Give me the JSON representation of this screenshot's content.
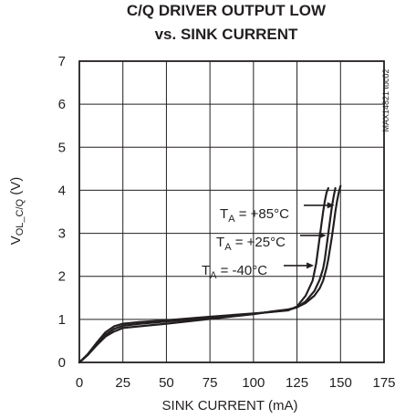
{
  "chart_data": {
    "type": "line",
    "title": [
      "C/Q DRIVER OUTPUT LOW",
      "vs. SINK CURRENT"
    ],
    "xlabel": "SINK CURRENT (mA)",
    "ylabel": {
      "main": "V",
      "sub": "OL_C/Q",
      "unit": " (V)"
    },
    "xlim": [
      0,
      175
    ],
    "ylim": [
      0,
      7
    ],
    "xticks": [
      "0",
      "25",
      "50",
      "75",
      "100",
      "125",
      "150",
      "175"
    ],
    "yticks": [
      "0",
      "1",
      "2",
      "3",
      "4",
      "5",
      "6",
      "7"
    ],
    "grid": true,
    "figure_code": "MAX14821 toc02",
    "series": [
      {
        "annotation": {
          "main": "T",
          "sub": "A",
          "rest": " = +85°C"
        },
        "x": [
          0,
          5,
          10,
          15,
          20,
          25,
          35,
          50,
          75,
          100,
          110,
          120,
          125,
          130,
          135,
          138,
          140,
          141,
          142,
          143,
          144,
          145,
          146,
          147,
          148,
          149,
          150
        ],
        "y": [
          0,
          0.18,
          0.4,
          0.6,
          0.72,
          0.8,
          0.84,
          0.9,
          1.01,
          1.12,
          1.18,
          1.23,
          1.28,
          1.38,
          1.55,
          1.72,
          1.9,
          2.05,
          2.2,
          2.4,
          2.65,
          2.9,
          3.2,
          3.5,
          3.75,
          3.95,
          4.1
        ]
      },
      {
        "annotation": {
          "main": "T",
          "sub": "A",
          "rest": " = +25°C"
        },
        "x": [
          0,
          5,
          10,
          15,
          20,
          25,
          35,
          50,
          75,
          100,
          110,
          120,
          125,
          130,
          135,
          138,
          140,
          141,
          142,
          143,
          144,
          145,
          146,
          147
        ],
        "y": [
          0,
          0.18,
          0.42,
          0.64,
          0.78,
          0.85,
          0.9,
          0.95,
          1.04,
          1.13,
          1.17,
          1.22,
          1.28,
          1.42,
          1.66,
          1.92,
          2.18,
          2.4,
          2.7,
          3.0,
          3.3,
          3.6,
          3.85,
          4.05
        ]
      },
      {
        "annotation": {
          "main": "T",
          "sub": "A",
          "rest": " = -40°C"
        },
        "x": [
          0,
          5,
          10,
          15,
          20,
          25,
          35,
          50,
          75,
          100,
          110,
          120,
          125,
          130,
          134,
          136,
          137,
          138,
          139,
          140,
          141,
          142,
          143
        ],
        "y": [
          0,
          0.2,
          0.46,
          0.7,
          0.84,
          0.9,
          0.94,
          0.98,
          1.06,
          1.14,
          1.17,
          1.21,
          1.3,
          1.55,
          1.9,
          2.3,
          2.6,
          2.9,
          3.2,
          3.5,
          3.75,
          3.95,
          4.05
        ]
      }
    ]
  }
}
